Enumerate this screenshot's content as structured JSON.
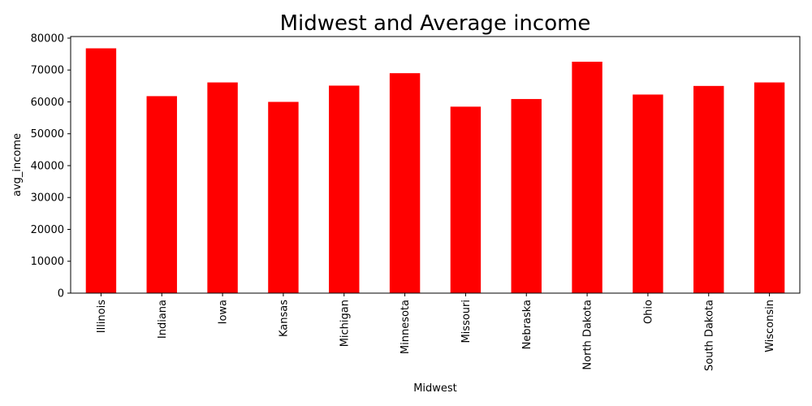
{
  "chart_data": {
    "type": "bar",
    "title": "Midwest and Average income",
    "xlabel": "Midwest",
    "ylabel": "avg_income",
    "categories": [
      "Illinois",
      "Indiana",
      "Iowa",
      "Kansas",
      "Michigan",
      "Minnesota",
      "Missouri",
      "Nebraska",
      "North Dakota",
      "Ohio",
      "South Dakota",
      "Wisconsin"
    ],
    "values": [
      76800,
      61800,
      66100,
      60000,
      65100,
      69000,
      58500,
      60900,
      72600,
      62300,
      65000,
      66100
    ],
    "ylim": [
      0,
      80500
    ],
    "yticks": [
      0,
      10000,
      20000,
      30000,
      40000,
      50000,
      60000,
      70000,
      80000
    ],
    "bar_color": "#ff0000",
    "grid": false,
    "legend": false
  }
}
